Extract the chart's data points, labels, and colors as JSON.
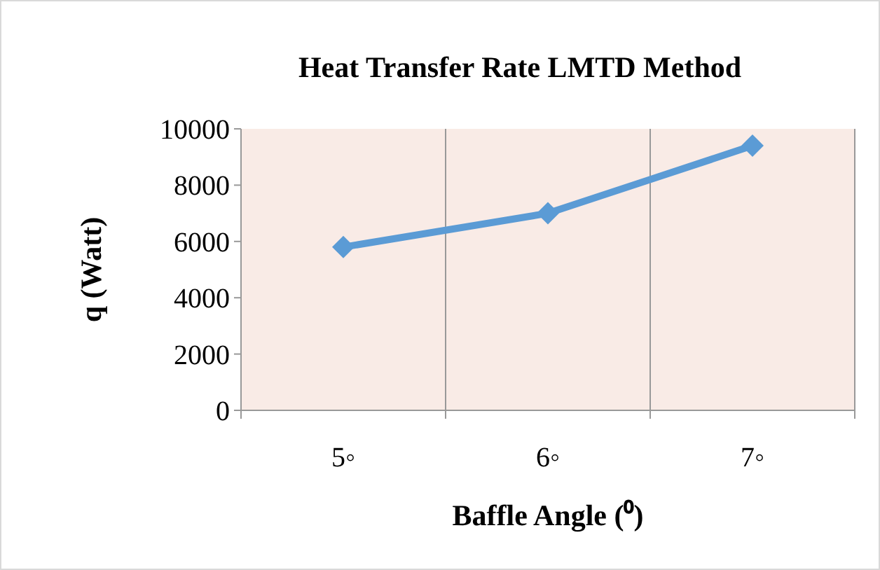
{
  "chart_data": {
    "type": "line",
    "title": "Heat Transfer Rate LMTD Method",
    "xlabel": "Baffle Angle (⁰)",
    "ylabel": "q (Watt)",
    "categories": [
      "5◦",
      "6◦",
      "7◦"
    ],
    "series": [
      {
        "color": "#5b9bd5",
        "values": [
          5800,
          7000,
          9400
        ]
      }
    ],
    "ylim": [
      0,
      10000
    ],
    "yticks": [
      0,
      2000,
      4000,
      6000,
      8000,
      10000
    ],
    "grid": "x",
    "marker": "diamond",
    "line_style": "solid"
  }
}
